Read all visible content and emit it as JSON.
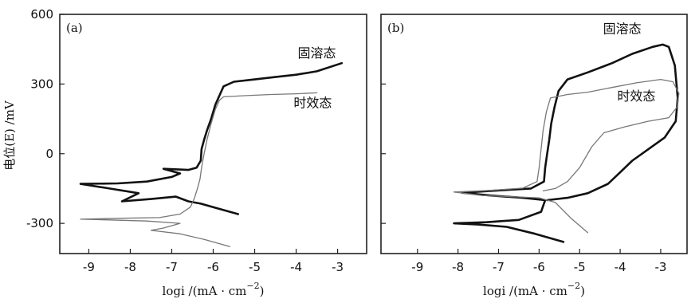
{
  "y_axis_title": "电位(E) /mV",
  "chart_data": [
    {
      "type": "line",
      "panel_label": "(a)",
      "xlabel": "logi /(mA · cm",
      "xlabel_sup": "−2",
      "xlabel_close": ")",
      "xlim": [
        -9.7,
        -2.3
      ],
      "ylim": [
        -430,
        600
      ],
      "x_ticks": [
        -9,
        -8,
        -7,
        -6,
        -5,
        -4,
        -3
      ],
      "x_tick_labels": [
        "-9",
        "-8",
        "-7",
        "-6",
        "-5",
        "-4",
        "-3"
      ],
      "y_ticks": [
        -300,
        0,
        300,
        600
      ],
      "y_tick_labels": [
        "-300",
        "0",
        "300",
        "600"
      ],
      "annotations": [
        {
          "text": "固溶态",
          "x": -3.5,
          "y": 415
        },
        {
          "text": "时效态",
          "x": -3.6,
          "y": 200
        }
      ],
      "series": [
        {
          "name": "固溶态",
          "color": "#111111",
          "width": 2.6,
          "points": [
            [
              -5.4,
              -260
            ],
            [
              -5.9,
              -235
            ],
            [
              -6.3,
              -215
            ],
            [
              -6.6,
              -205
            ],
            [
              -6.9,
              -185
            ],
            [
              -7.5,
              -195
            ],
            [
              -8.2,
              -205
            ],
            [
              -7.8,
              -170
            ],
            [
              -8.5,
              -150
            ],
            [
              -9.2,
              -130
            ],
            [
              -8.3,
              -128
            ],
            [
              -7.6,
              -120
            ],
            [
              -7.0,
              -100
            ],
            [
              -6.8,
              -85
            ],
            [
              -7.2,
              -65
            ],
            [
              -6.6,
              -70
            ],
            [
              -6.4,
              -60
            ],
            [
              -6.3,
              -30
            ],
            [
              -6.28,
              20
            ],
            [
              -6.22,
              60
            ],
            [
              -6.15,
              100
            ],
            [
              -6.05,
              150
            ],
            [
              -5.95,
              210
            ],
            [
              -5.85,
              250
            ],
            [
              -5.75,
              290
            ],
            [
              -5.5,
              310
            ],
            [
              -5.0,
              320
            ],
            [
              -4.5,
              330
            ],
            [
              -4.0,
              340
            ],
            [
              -3.5,
              355
            ],
            [
              -2.9,
              390
            ]
          ]
        },
        {
          "name": "时效态",
          "color": "#777777",
          "width": 1.3,
          "points": [
            [
              -5.6,
              -400
            ],
            [
              -6.2,
              -370
            ],
            [
              -6.8,
              -345
            ],
            [
              -7.5,
              -330
            ],
            [
              -7.2,
              -320
            ],
            [
              -6.8,
              -300
            ],
            [
              -7.6,
              -290
            ],
            [
              -8.5,
              -285
            ],
            [
              -9.2,
              -282
            ],
            [
              -8.2,
              -278
            ],
            [
              -7.3,
              -275
            ],
            [
              -6.8,
              -260
            ],
            [
              -6.55,
              -230
            ],
            [
              -6.45,
              -190
            ],
            [
              -6.38,
              -150
            ],
            [
              -6.32,
              -110
            ],
            [
              -6.28,
              -60
            ],
            [
              -6.22,
              0
            ],
            [
              -6.15,
              60
            ],
            [
              -6.05,
              130
            ],
            [
              -5.95,
              190
            ],
            [
              -5.85,
              230
            ],
            [
              -5.75,
              245
            ],
            [
              -5.2,
              250
            ],
            [
              -4.6,
              255
            ],
            [
              -4.0,
              258
            ],
            [
              -3.5,
              262
            ]
          ]
        }
      ]
    },
    {
      "type": "line",
      "panel_label": "(b)",
      "xlabel": "logi /(mA · cm",
      "xlabel_sup": "−2",
      "xlabel_close": ")",
      "xlim": [
        -9.9,
        -2.35
      ],
      "ylim": [
        -430,
        600
      ],
      "x_ticks": [
        -9,
        -8,
        -7,
        -6,
        -5,
        -4,
        -3
      ],
      "x_tick_labels": [
        "-9",
        "-8",
        "-7",
        "-6",
        "-5",
        "-4",
        "-3"
      ],
      "y_ticks": [
        -300,
        0,
        300,
        600
      ],
      "y_tick_labels": [
        "-300",
        "0",
        "300",
        "600"
      ],
      "annotations": [
        {
          "text": "固溶态",
          "x": -3.95,
          "y": 520
        },
        {
          "text": "时效态",
          "x": -3.6,
          "y": 230
        }
      ],
      "series": [
        {
          "name": "固溶态",
          "color": "#111111",
          "width": 2.6,
          "points": [
            [
              -5.4,
              -380
            ],
            [
              -6.1,
              -345
            ],
            [
              -6.8,
              -315
            ],
            [
              -7.5,
              -305
            ],
            [
              -8.1,
              -300
            ],
            [
              -7.3,
              -295
            ],
            [
              -6.5,
              -285
            ],
            [
              -5.95,
              -250
            ],
            [
              -5.85,
              -200
            ],
            [
              -6.4,
              -190
            ],
            [
              -7.2,
              -180
            ],
            [
              -7.9,
              -168
            ],
            [
              -7.2,
              -160
            ],
            [
              -6.2,
              -150
            ],
            [
              -5.88,
              -120
            ],
            [
              -5.85,
              -60
            ],
            [
              -5.8,
              0
            ],
            [
              -5.75,
              60
            ],
            [
              -5.7,
              130
            ],
            [
              -5.62,
              200
            ],
            [
              -5.52,
              270
            ],
            [
              -5.3,
              320
            ],
            [
              -4.8,
              350
            ],
            [
              -4.2,
              390
            ],
            [
              -3.7,
              430
            ],
            [
              -3.2,
              460
            ],
            [
              -2.95,
              470
            ],
            [
              -2.8,
              460
            ],
            [
              -2.65,
              380
            ],
            [
              -2.58,
              240
            ],
            [
              -2.63,
              140
            ],
            [
              -2.9,
              70
            ],
            [
              -3.3,
              20
            ],
            [
              -3.7,
              -30
            ],
            [
              -4.0,
              -80
            ],
            [
              -4.3,
              -130
            ],
            [
              -4.8,
              -170
            ],
            [
              -5.3,
              -190
            ],
            [
              -5.8,
              -200
            ]
          ]
        },
        {
          "name": "时效态",
          "color": "#777777",
          "width": 1.3,
          "points": [
            [
              -4.8,
              -340
            ],
            [
              -5.2,
              -280
            ],
            [
              -5.6,
              -210
            ],
            [
              -6.0,
              -190
            ],
            [
              -6.7,
              -185
            ],
            [
              -7.4,
              -180
            ],
            [
              -8.1,
              -165
            ],
            [
              -7.2,
              -158
            ],
            [
              -6.4,
              -148
            ],
            [
              -6.05,
              -120
            ],
            [
              -6.0,
              -60
            ],
            [
              -5.95,
              20
            ],
            [
              -5.9,
              100
            ],
            [
              -5.82,
              180
            ],
            [
              -5.72,
              240
            ],
            [
              -5.3,
              255
            ],
            [
              -4.8,
              265
            ],
            [
              -4.2,
              285
            ],
            [
              -3.6,
              305
            ],
            [
              -3.0,
              320
            ],
            [
              -2.7,
              310
            ],
            [
              -2.55,
              260
            ],
            [
              -2.6,
              200
            ],
            [
              -2.8,
              155
            ],
            [
              -3.3,
              140
            ],
            [
              -3.9,
              115
            ],
            [
              -4.4,
              90
            ],
            [
              -4.7,
              30
            ],
            [
              -5.0,
              -60
            ],
            [
              -5.3,
              -120
            ],
            [
              -5.6,
              -150
            ],
            [
              -5.9,
              -160
            ]
          ]
        }
      ]
    }
  ]
}
